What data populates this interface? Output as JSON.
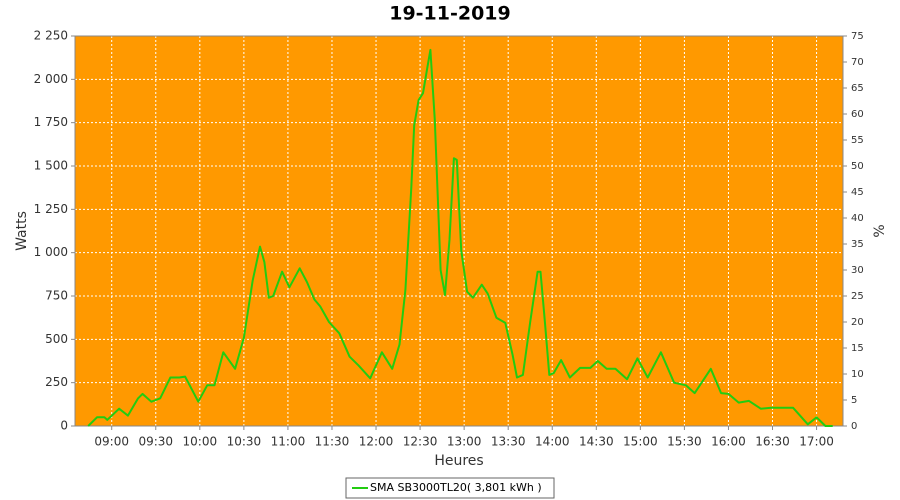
{
  "chart_data": {
    "type": "line",
    "title": "19-11-2019",
    "x_label": "Heures",
    "y_label": "Watts",
    "y2_label": "%",
    "xlim": [
      "08:35",
      "17:18"
    ],
    "xticks": [
      "09:00",
      "09:30",
      "10:00",
      "10:30",
      "11:00",
      "11:30",
      "12:00",
      "12:30",
      "13:00",
      "13:30",
      "14:00",
      "14:30",
      "15:00",
      "15:30",
      "16:00",
      "16:30",
      "17:00"
    ],
    "ylim": [
      0,
      2250
    ],
    "yticks": [
      0,
      250,
      500,
      750,
      {
        "value": 1000,
        "label": "1 000"
      },
      {
        "value": 1250,
        "label": "1 250"
      },
      {
        "value": 1500,
        "label": "1 500"
      },
      {
        "value": 1750,
        "label": "1 750"
      },
      {
        "value": 2000,
        "label": "2 000"
      },
      {
        "value": 2250,
        "label": "2 250"
      }
    ],
    "y2lim": [
      0,
      75
    ],
    "y2ticks": [
      0,
      5,
      10,
      15,
      20,
      25,
      30,
      35,
      40,
      45,
      50,
      55,
      60,
      65,
      70,
      75
    ],
    "grid": true,
    "background": "#ff9900",
    "series": [
      {
        "name": "SMA SB3000TL20( 3,801 kWh )",
        "color": "#22cc11",
        "x": [
          "08:44",
          "08:50",
          "08:55",
          "08:57",
          "09:05",
          "09:11",
          "09:18",
          "09:21",
          "09:27",
          "09:33",
          "09:40",
          "09:46",
          "09:50",
          "09:59",
          "10:05",
          "10:10",
          "10:16",
          "10:24",
          "10:30",
          "10:36",
          "10:41",
          "10:44",
          "10:47",
          "10:50",
          "10:56",
          "11:01",
          "11:08",
          "11:13",
          "11:18",
          "11:22",
          "11:28",
          "11:35",
          "11:42",
          "11:48",
          "11:56",
          "12:04",
          "12:11",
          "12:16",
          "12:20",
          "12:24",
          "12:26",
          "12:29",
          "12:32",
          "12:35",
          "12:37",
          "12:40",
          "12:44",
          "12:47",
          "12:50",
          "12:53",
          "12:55",
          "12:58",
          "13:02",
          "13:06",
          "13:12",
          "13:16",
          "13:22",
          "13:28",
          "13:33",
          "13:36",
          "13:40",
          "13:45",
          "13:50",
          "13:52",
          "13:55",
          "13:58",
          "14:01",
          "14:06",
          "14:12",
          "14:19",
          "14:26",
          "14:31",
          "14:37",
          "14:43",
          "14:51",
          "14:58",
          "15:05",
          "15:14",
          "15:23",
          "15:31",
          "15:37",
          "15:48",
          "15:55",
          "16:00",
          "16:07",
          "16:14",
          "16:22",
          "16:29",
          "16:44",
          "16:54",
          "17:00",
          "17:06",
          "17:11"
        ],
        "values": [
          0,
          50,
          50,
          35,
          100,
          60,
          160,
          185,
          140,
          160,
          280,
          280,
          285,
          140,
          235,
          235,
          425,
          330,
          510,
          840,
          1035,
          945,
          740,
          750,
          890,
          800,
          910,
          830,
          730,
          690,
          600,
          535,
          400,
          350,
          275,
          425,
          330,
          470,
          785,
          1375,
          1735,
          1880,
          1920,
          2070,
          2170,
          1765,
          900,
          755,
          1075,
          1545,
          1535,
          1015,
          775,
          740,
          815,
          765,
          625,
          595,
          410,
          280,
          295,
          600,
          890,
          890,
          600,
          295,
          305,
          380,
          280,
          335,
          335,
          375,
          330,
          330,
          270,
          390,
          280,
          425,
          250,
          235,
          190,
          330,
          190,
          185,
          135,
          145,
          100,
          105,
          105,
          10,
          50,
          0,
          0
        ]
      }
    ]
  }
}
